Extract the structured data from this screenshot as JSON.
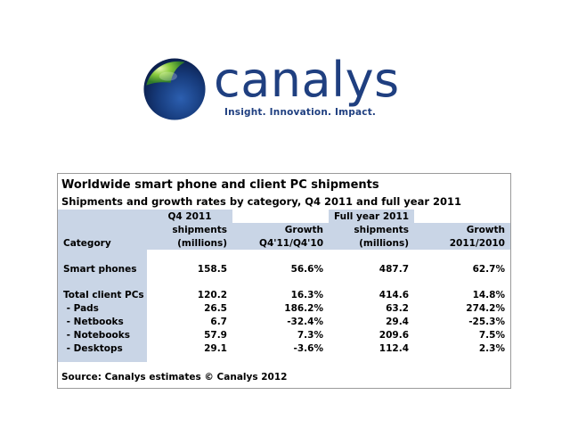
{
  "logo": {
    "wordmark": "canalys",
    "tagline": "Insight. Innovation. Impact."
  },
  "table": {
    "title": "Worldwide smart phone and client PC shipments",
    "subtitle": "Shipments and growth rates by category, Q4 2011 and full year 2011",
    "header": {
      "category": "Category",
      "q4_line1": "Q4 2011",
      "q4_line2": "shipments",
      "q4_line3": "(millions)",
      "q4_growth_line1": "Growth",
      "q4_growth_line2": "Q4'11/Q4'10",
      "fy_line1": "Full year 2011",
      "fy_line2": "shipments",
      "fy_line3": "(millions)",
      "fy_growth_line1": "Growth",
      "fy_growth_line2": "2011/2010"
    },
    "rows": [
      {
        "category": "Smart phones",
        "q4": "158.5",
        "q4_growth": "56.6%",
        "fy": "487.7",
        "fy_growth": "62.7%"
      },
      {
        "category": "Total client PCs",
        "q4": "120.2",
        "q4_growth": "16.3%",
        "fy": "414.6",
        "fy_growth": "14.8%"
      },
      {
        "category": " - Pads",
        "q4": "26.5",
        "q4_growth": "186.2%",
        "fy": "63.2",
        "fy_growth": "274.2%"
      },
      {
        "category": " - Netbooks",
        "q4": "6.7",
        "q4_growth": "-32.4%",
        "fy": "29.4",
        "fy_growth": "-25.3%"
      },
      {
        "category": " - Notebooks",
        "q4": "57.9",
        "q4_growth": "7.3%",
        "fy": "209.6",
        "fy_growth": "7.5%"
      },
      {
        "category": " - Desktops",
        "q4": "29.1",
        "q4_growth": "-3.6%",
        "fy": "112.4",
        "fy_growth": "2.3%"
      }
    ],
    "source": "Source: Canalys estimates © Canalys 2012"
  },
  "colors": {
    "brand_blue": "#1f3f80",
    "header_shade": "#c9d5e6",
    "globe_green": "#7fc241"
  }
}
